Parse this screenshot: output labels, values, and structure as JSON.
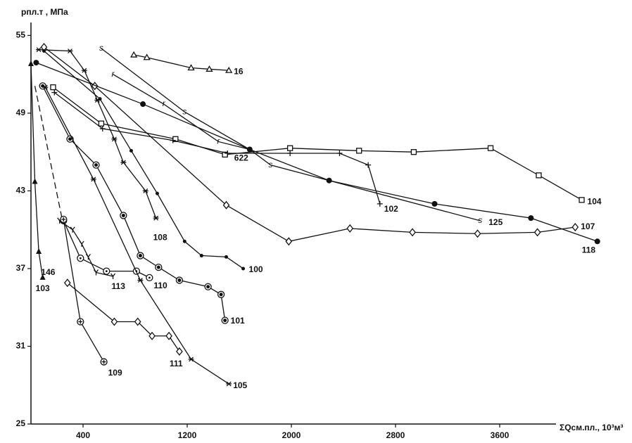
{
  "chart_data": {
    "type": "line",
    "y_label": "pпл.т , МПа",
    "x_label": "ΣQсм.пл., 10³м³",
    "xlim": [
      0,
      4400
    ],
    "ylim": [
      25,
      56
    ],
    "xticks": [
      400,
      1200,
      2000,
      2800,
      3600
    ],
    "yticks": [
      25,
      31,
      37,
      43,
      49,
      55
    ],
    "grid": false,
    "color": "#111111",
    "series": [
      {
        "name": "16",
        "marker": "triangle-open",
        "x": [
          790,
          890,
          1230,
          1370,
          1520
        ],
        "values": [
          53.5,
          53.3,
          52.5,
          52.4,
          52.3
        ]
      },
      {
        "name": "622",
        "marker": "r",
        "x": [
          630,
          1020,
          1440,
          1680
        ],
        "values": [
          52.0,
          49.7,
          46.8,
          46.2
        ]
      },
      {
        "name": "104",
        "marker": "square",
        "x": [
          170,
          540,
          1110,
          1490,
          1990,
          2520,
          2940,
          3530,
          3900,
          4230
        ],
        "values": [
          51.0,
          48.2,
          47.0,
          45.8,
          46.3,
          46.1,
          46.0,
          46.3,
          44.2,
          42.3
        ]
      },
      {
        "name": "102",
        "marker": "cross",
        "x": [
          180,
          550,
          1090,
          1510,
          1990,
          2370,
          2590,
          2680
        ],
        "values": [
          50.6,
          47.8,
          46.9,
          45.9,
          45.9,
          45.9,
          45.0,
          42.0
        ]
      },
      {
        "name": "125",
        "marker": "s",
        "x": [
          540,
          1180,
          1680,
          1840,
          3450
        ],
        "values": [
          54.0,
          49.1,
          46.2,
          45.0,
          40.7
        ]
      },
      {
        "name": "107",
        "marker": "diamond",
        "x": [
          100,
          490,
          1500,
          1980,
          2450,
          2930,
          3430,
          3890,
          4180
        ],
        "values": [
          54.1,
          51.1,
          41.9,
          39.1,
          40.1,
          39.8,
          39.7,
          39.8,
          40.2
        ]
      },
      {
        "name": "118",
        "marker": "circle-filled",
        "x": [
          40,
          860,
          1680,
          2290,
          3100,
          3840,
          4350
        ],
        "values": [
          52.9,
          49.7,
          46.2,
          43.8,
          42.0,
          40.9,
          39.1
        ]
      },
      {
        "name": "100",
        "marker": "dot",
        "x": [
          100,
          530,
          770,
          970,
          1180,
          1310,
          1500,
          1630
        ],
        "values": [
          53.8,
          50.1,
          46.1,
          42.8,
          39.1,
          38.0,
          37.9,
          37.0
        ]
      },
      {
        "name": "108",
        "marker": "star",
        "x": [
          60,
          300,
          410,
          510,
          640,
          710,
          880,
          960
        ],
        "values": [
          53.9,
          53.8,
          52.3,
          50.0,
          47.0,
          45.2,
          43.0,
          40.9
        ]
      },
      {
        "name": "101",
        "marker": "circle-double",
        "x": [
          90,
          300,
          500,
          710,
          840,
          980,
          1140,
          1360,
          1460,
          1490
        ],
        "values": [
          51.1,
          47.0,
          45.0,
          41.1,
          38.0,
          37.1,
          36.1,
          35.6,
          35.0,
          33.0
        ]
      },
      {
        "name": "110",
        "marker": "circle-dot",
        "x": [
          250,
          380,
          580,
          810,
          910
        ],
        "values": [
          40.7,
          37.8,
          36.8,
          36.8,
          36.3
        ]
      },
      {
        "name": "113",
        "marker": "tick",
        "x": [
          220,
          320,
          390,
          440,
          500,
          630
        ],
        "values": [
          40.7,
          40.0,
          38.9,
          37.9,
          36.7,
          36.4
        ]
      },
      {
        "name": "146",
        "marker": "none",
        "dash": true,
        "x": [
          30,
          150,
          240
        ],
        "values": [
          51.1,
          45.2,
          40.8
        ]
      },
      {
        "name": "111",
        "marker": "diamond",
        "x": [
          280,
          640,
          820,
          930,
          1060,
          1140
        ],
        "values": [
          35.9,
          32.9,
          32.9,
          31.8,
          31.8,
          30.6
        ]
      },
      {
        "name": "109",
        "marker": "circle-plus",
        "x": [
          250,
          380,
          560
        ],
        "values": [
          40.8,
          32.9,
          29.8
        ]
      },
      {
        "name": "105",
        "marker": "star",
        "x": [
          110,
          480,
          840,
          1230,
          1520
        ],
        "values": [
          51.0,
          43.9,
          36.1,
          30.0,
          28.1
        ]
      },
      {
        "name": "103",
        "marker": "triangle",
        "x": [
          0,
          30,
          60,
          90
        ],
        "values": [
          52.8,
          43.7,
          38.3,
          36.3
        ]
      }
    ]
  }
}
